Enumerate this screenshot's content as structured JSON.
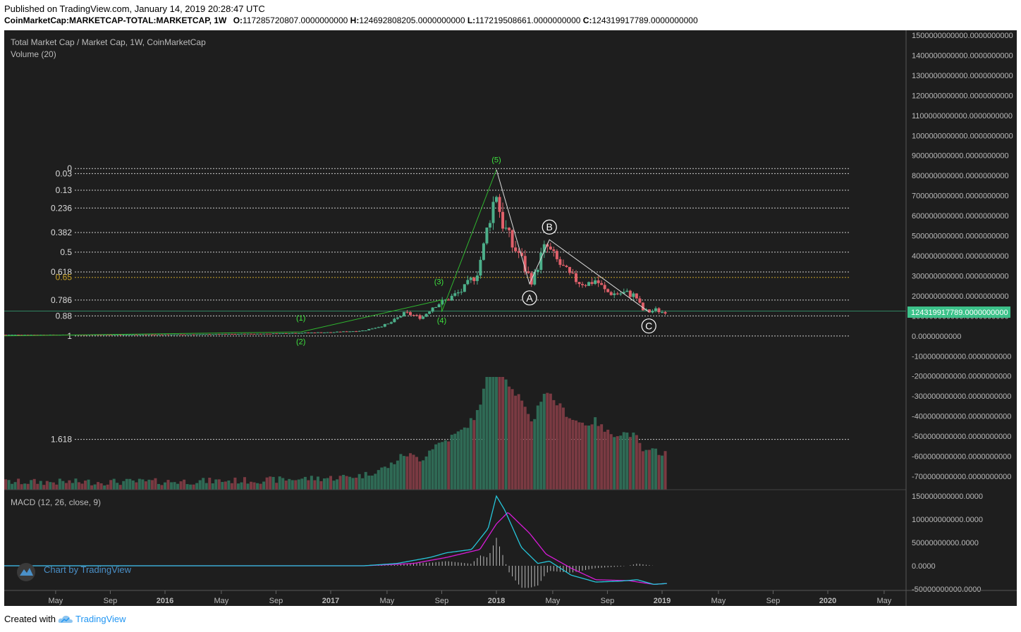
{
  "header": {
    "published": "Published on TradingView.com, January 14, 2019 20:28:47 UTC",
    "symbol": "CoinMarketCap:MARKETCAP-TOTAL:MARKETCAP, 1W",
    "ohlc": [
      {
        "k": "O:",
        "v": "117285720807.0000000000"
      },
      {
        "k": "H:",
        "v": "124692808205.0000000000"
      },
      {
        "k": "L:",
        "v": "117219508661.0000000000"
      },
      {
        "k": "C:",
        "v": "124319917789.0000000000"
      }
    ]
  },
  "legend": {
    "main": "Total Market Cap / Market Cap, 1W, CoinMarketCap",
    "volume": "Volume (20)",
    "macd": "MACD (12, 26, close, 9)"
  },
  "watermark": "Chart by TradingView",
  "footer": {
    "created_with": "Created with",
    "brand": "TradingView"
  },
  "colors": {
    "background": "#1e1e1e",
    "up": "#4caf8a",
    "down": "#e0606a",
    "macd": "#26c6da",
    "signal": "#d81bd8",
    "wave": "#2fb52f",
    "fib": "#cccccc",
    "fib_gold": "#c9a227",
    "price_label": "#3cc28a"
  },
  "chart_data": {
    "type": "candlestick",
    "title": "Total Market Cap / Market Cap, 1W, CoinMarketCap",
    "x_ticks": [
      "May",
      "Sep",
      "2016",
      "May",
      "Sep",
      "2017",
      "May",
      "Sep",
      "2018",
      "May",
      "Sep",
      "2019",
      "May",
      "Sep",
      "2020",
      "May"
    ],
    "y_ticks": [
      "1500000000000.0000000000",
      "1400000000000.0000000000",
      "1300000000000.0000000000",
      "1200000000000.0000000000",
      "1100000000000.0000000000",
      "1000000000000.0000000000",
      "900000000000.0000000000",
      "800000000000.0000000000",
      "700000000000.0000000000",
      "600000000000.0000000000",
      "500000000000.0000000000",
      "400000000000.0000000000",
      "300000000000.0000000000",
      "200000000000.0000000000",
      "100000000000.0000000000",
      "0.0000000000",
      "-100000000000.0000000000",
      "-200000000000.0000000000",
      "-300000000000.0000000000",
      "-400000000000.0000000000",
      "-500000000000.0000000000",
      "-600000000000.0000000000",
      "-700000000000.0000000000"
    ],
    "y_range": [
      -750000000000,
      1500000000000
    ],
    "last_price_label": "124319917789.0000000000",
    "last_price": 124319917789,
    "fib_levels": [
      {
        "label": "0",
        "value": 835000000000
      },
      {
        "label": "0.03",
        "value": 810000000000
      },
      {
        "label": "0.13",
        "value": 727000000000
      },
      {
        "label": "0.236",
        "value": 638000000000
      },
      {
        "label": "0.382",
        "value": 516000000000
      },
      {
        "label": "0.5",
        "value": 418000000000
      },
      {
        "label": "0.618",
        "value": 319000000000
      },
      {
        "label": "0.65",
        "value": 292000000000
      },
      {
        "label": "0.786",
        "value": 179000000000
      },
      {
        "label": "0.88",
        "value": 100000000000
      },
      {
        "label": "1",
        "value": 0
      },
      {
        "label": "1.618",
        "value": -516000000000
      }
    ],
    "waves": [
      {
        "label": "(1)",
        "x": 2016.82,
        "y": 20000000000
      },
      {
        "label": "(2)",
        "x": 2016.82,
        "y": 15000000000
      },
      {
        "label": "(3)",
        "x": 2017.67,
        "y": 180000000000
      },
      {
        "label": "(4)",
        "x": 2017.67,
        "y": 120000000000
      },
      {
        "label": "(5)",
        "x": 2018.0,
        "y": 830000000000
      },
      {
        "label": "A",
        "x": 2018.2,
        "y": 260000000000
      },
      {
        "label": "B",
        "x": 2018.32,
        "y": 480000000000
      },
      {
        "label": "C",
        "x": 2018.92,
        "y": 120000000000
      }
    ],
    "weekly_close": [
      [
        2015.0,
        6
      ],
      [
        2015.5,
        6
      ],
      [
        2016.0,
        7
      ],
      [
        2016.3,
        9
      ],
      [
        2016.6,
        11
      ],
      [
        2016.9,
        17
      ],
      [
        2017.0,
        18
      ],
      [
        2017.2,
        27
      ],
      [
        2017.35,
        60
      ],
      [
        2017.45,
        115
      ],
      [
        2017.55,
        90
      ],
      [
        2017.62,
        150
      ],
      [
        2017.7,
        180
      ],
      [
        2017.8,
        230
      ],
      [
        2017.88,
        310
      ],
      [
        2017.92,
        430
      ],
      [
        2017.96,
        600
      ],
      [
        2018.0,
        720
      ],
      [
        2018.03,
        580
      ],
      [
        2018.06,
        520
      ],
      [
        2018.1,
        440
      ],
      [
        2018.14,
        410
      ],
      [
        2018.18,
        320
      ],
      [
        2018.22,
        270
      ],
      [
        2018.26,
        380
      ],
      [
        2018.3,
        450
      ],
      [
        2018.34,
        400
      ],
      [
        2018.38,
        360
      ],
      [
        2018.44,
        300
      ],
      [
        2018.5,
        270
      ],
      [
        2018.55,
        260
      ],
      [
        2018.6,
        280
      ],
      [
        2018.66,
        220
      ],
      [
        2018.72,
        210
      ],
      [
        2018.78,
        215
      ],
      [
        2018.84,
        200
      ],
      [
        2018.88,
        130
      ],
      [
        2018.92,
        120
      ],
      [
        2018.96,
        130
      ],
      [
        2019.0,
        120
      ],
      [
        2019.03,
        124
      ]
    ],
    "volume_label": "Volume (20)",
    "macd": {
      "label": "MACD (12, 26, close, 9)",
      "y_ticks": [
        "150000000000.0000",
        "100000000000.0000",
        "50000000000.0000",
        "0.0000",
        "-50000000000.0000"
      ],
      "line": [
        [
          2015.0,
          0
        ],
        [
          2017.2,
          0
        ],
        [
          2017.4,
          5
        ],
        [
          2017.6,
          18
        ],
        [
          2017.7,
          28
        ],
        [
          2017.85,
          35
        ],
        [
          2017.95,
          80
        ],
        [
          2018.0,
          150
        ],
        [
          2018.05,
          120
        ],
        [
          2018.15,
          40
        ],
        [
          2018.25,
          5
        ],
        [
          2018.32,
          10
        ],
        [
          2018.45,
          -20
        ],
        [
          2018.6,
          -35
        ],
        [
          2018.75,
          -33
        ],
        [
          2018.85,
          -30
        ],
        [
          2018.95,
          -40
        ],
        [
          2019.03,
          -38
        ]
      ],
      "signal": [
        [
          2015.0,
          0
        ],
        [
          2017.2,
          0
        ],
        [
          2017.5,
          5
        ],
        [
          2017.7,
          18
        ],
        [
          2017.9,
          35
        ],
        [
          2018.0,
          90
        ],
        [
          2018.07,
          115
        ],
        [
          2018.2,
          70
        ],
        [
          2018.3,
          25
        ],
        [
          2018.45,
          -5
        ],
        [
          2018.6,
          -30
        ],
        [
          2018.8,
          -32
        ],
        [
          2018.95,
          -40
        ],
        [
          2019.03,
          -38
        ]
      ]
    }
  }
}
